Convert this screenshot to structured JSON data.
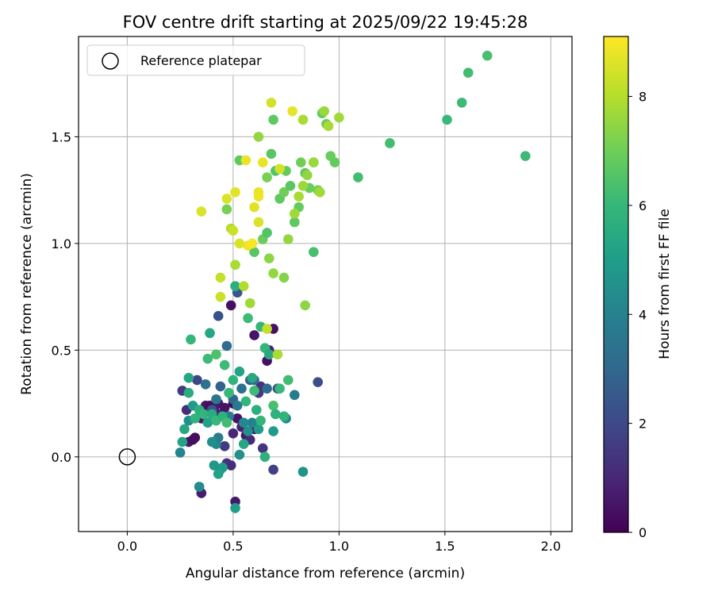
{
  "chart_data": {
    "type": "scatter",
    "title": "FOV centre drift starting at 2025/09/22 19:45:28",
    "xlabel": "Angular distance from reference (arcmin)",
    "ylabel": "Rotation from reference (arcmin)",
    "xlim": [
      -0.23,
      2.1
    ],
    "ylim": [
      -0.35,
      1.97
    ],
    "xticks": [
      0.0,
      0.5,
      1.0,
      1.5,
      2.0
    ],
    "xtick_labels": [
      "0.0",
      "0.5",
      "1.0",
      "1.5",
      "2.0"
    ],
    "yticks": [
      0.0,
      0.5,
      1.0,
      1.5
    ],
    "ytick_labels": [
      "0.0",
      "0.5",
      "1.0",
      "1.5"
    ],
    "grid": true,
    "legend": {
      "position": "top-left",
      "entries": [
        "Reference platepar"
      ]
    },
    "reference_point": {
      "x": 0.0,
      "y": 0.0,
      "label": "Reference platepar"
    },
    "colorbar": {
      "label": "Hours from first FF file",
      "min": 0,
      "max": 9.1,
      "ticks": [
        0,
        2,
        4,
        6,
        8
      ],
      "tick_labels": [
        "0",
        "2",
        "4",
        "6",
        "8"
      ],
      "colormap_stops": [
        "#440154",
        "#482878",
        "#3e4989",
        "#31688e",
        "#26828e",
        "#1f9e89",
        "#35b779",
        "#6ece58",
        "#b5de2b",
        "#fde725"
      ]
    },
    "points": [
      [
        0.26,
        0.31,
        1.6
      ],
      [
        0.28,
        0.22,
        1.2
      ],
      [
        0.29,
        0.07,
        0.6
      ],
      [
        0.31,
        0.08,
        0.4
      ],
      [
        0.32,
        0.09,
        0.3
      ],
      [
        0.35,
        0.18,
        0.6
      ],
      [
        0.36,
        0.2,
        0.8
      ],
      [
        0.37,
        0.24,
        0.5
      ],
      [
        0.39,
        0.24,
        0.3
      ],
      [
        0.41,
        0.22,
        0.4
      ],
      [
        0.43,
        0.25,
        0.6
      ],
      [
        0.44,
        0.2,
        0.9
      ],
      [
        0.46,
        0.23,
        0.5
      ],
      [
        0.48,
        0.19,
        0.7
      ],
      [
        0.5,
        0.25,
        0.2
      ],
      [
        0.52,
        0.18,
        0.5
      ],
      [
        0.54,
        0.14,
        0.8
      ],
      [
        0.56,
        0.1,
        0.6
      ],
      [
        0.58,
        0.08,
        1.1
      ],
      [
        0.6,
        0.13,
        0.5
      ],
      [
        0.62,
        0.3,
        0.6
      ],
      [
        0.63,
        0.33,
        1.3
      ],
      [
        0.64,
        0.04,
        1.4
      ],
      [
        0.66,
        0.45,
        0.4
      ],
      [
        0.67,
        0.5,
        0.9
      ],
      [
        0.69,
        0.6,
        0.4
      ],
      [
        0.6,
        0.57,
        0.5
      ],
      [
        0.49,
        0.71,
        0.4
      ],
      [
        0.5,
        0.11,
        1.0
      ],
      [
        0.46,
        0.05,
        1.6
      ],
      [
        0.47,
        -0.03,
        1.3
      ],
      [
        0.49,
        -0.04,
        1.2
      ],
      [
        0.51,
        -0.21,
        0.6
      ],
      [
        0.35,
        -0.17,
        0.7
      ],
      [
        0.69,
        -0.06,
        1.8
      ],
      [
        0.62,
        0.3,
        1.5
      ],
      [
        0.71,
        0.32,
        2.0
      ],
      [
        0.9,
        0.35,
        2.2
      ],
      [
        0.79,
        0.29,
        3.8
      ],
      [
        0.43,
        0.66,
        2.3
      ],
      [
        0.52,
        0.77,
        2.5
      ],
      [
        0.47,
        0.52,
        3.2
      ],
      [
        0.4,
        0.22,
        2.4
      ],
      [
        0.33,
        0.36,
        1.9
      ],
      [
        0.37,
        0.34,
        3.4
      ],
      [
        0.42,
        0.27,
        3.6
      ],
      [
        0.44,
        0.33,
        2.8
      ],
      [
        0.5,
        0.27,
        3.0
      ],
      [
        0.54,
        0.32,
        3.4
      ],
      [
        0.58,
        0.36,
        2.9
      ],
      [
        0.6,
        0.36,
        3.2
      ],
      [
        0.66,
        0.32,
        3.1
      ],
      [
        0.48,
        0.19,
        4.0
      ],
      [
        0.52,
        0.24,
        3.7
      ],
      [
        0.55,
        0.16,
        4.3
      ],
      [
        0.57,
        0.12,
        4.5
      ],
      [
        0.59,
        0.16,
        4.0
      ],
      [
        0.42,
        0.06,
        4.3
      ],
      [
        0.43,
        0.09,
        3.8
      ],
      [
        0.4,
        0.07,
        4.5
      ],
      [
        0.41,
        -0.04,
        4.8
      ],
      [
        0.44,
        -0.06,
        4.6
      ],
      [
        0.45,
        -0.05,
        5.0
      ],
      [
        0.43,
        -0.08,
        5.2
      ],
      [
        0.34,
        -0.14,
        4.4
      ],
      [
        0.51,
        -0.24,
        5.1
      ],
      [
        0.53,
        0.01,
        4.6
      ],
      [
        0.55,
        0.06,
        5.4
      ],
      [
        0.62,
        0.13,
        4.9
      ],
      [
        0.65,
        -0.0,
        5.8
      ],
      [
        0.69,
        0.12,
        4.9
      ],
      [
        0.75,
        0.18,
        4.2
      ],
      [
        0.83,
        -0.07,
        4.7
      ],
      [
        0.25,
        0.02,
        4.1
      ],
      [
        0.26,
        0.07,
        5.3
      ],
      [
        0.27,
        0.13,
        5.4
      ],
      [
        0.29,
        0.17,
        4.5
      ],
      [
        0.31,
        0.24,
        5.0
      ],
      [
        0.29,
        0.3,
        5.6
      ],
      [
        0.29,
        0.37,
        5.4
      ],
      [
        0.32,
        0.18,
        5.9
      ],
      [
        0.34,
        0.22,
        5.7
      ],
      [
        0.36,
        0.2,
        6.0
      ],
      [
        0.38,
        0.16,
        5.2
      ],
      [
        0.4,
        0.2,
        5.6
      ],
      [
        0.42,
        0.17,
        6.1
      ],
      [
        0.45,
        0.19,
        5.8
      ],
      [
        0.47,
        0.16,
        6.3
      ],
      [
        0.48,
        0.3,
        6.1
      ],
      [
        0.5,
        0.36,
        5.9
      ],
      [
        0.53,
        0.4,
        5.3
      ],
      [
        0.56,
        0.26,
        6.0
      ],
      [
        0.59,
        0.37,
        5.5
      ],
      [
        0.6,
        0.31,
        6.2
      ],
      [
        0.61,
        0.22,
        5.7
      ],
      [
        0.63,
        0.17,
        6.0
      ],
      [
        0.65,
        0.51,
        6.0
      ],
      [
        0.67,
        0.48,
        5.5
      ],
      [
        0.69,
        0.24,
        6.4
      ],
      [
        0.7,
        0.2,
        5.8
      ],
      [
        0.72,
        0.32,
        6.1
      ],
      [
        0.74,
        0.19,
        5.9
      ],
      [
        0.76,
        0.36,
        6.3
      ],
      [
        0.3,
        0.55,
        6.0
      ],
      [
        0.38,
        0.46,
        6.2
      ],
      [
        0.39,
        0.58,
        5.4
      ],
      [
        0.42,
        0.48,
        6.5
      ],
      [
        0.46,
        0.43,
        6.2
      ],
      [
        0.51,
        0.8,
        5.7
      ],
      [
        0.57,
        0.65,
        6.2
      ],
      [
        0.63,
        0.61,
        6.0
      ],
      [
        0.88,
        0.96,
        6.4
      ],
      [
        1.09,
        1.31,
        6.3
      ],
      [
        1.24,
        1.47,
        6.3
      ],
      [
        1.51,
        1.58,
        6.1
      ],
      [
        1.58,
        1.66,
        6.2
      ],
      [
        1.61,
        1.8,
        6.3
      ],
      [
        1.7,
        1.88,
        6.4
      ],
      [
        1.88,
        1.41,
        6.2
      ],
      [
        0.53,
        1.39,
        6.8
      ],
      [
        0.6,
        0.96,
        6.7
      ],
      [
        0.64,
        1.02,
        7.0
      ],
      [
        0.66,
        1.05,
        6.6
      ],
      [
        0.68,
        1.42,
        6.7
      ],
      [
        0.69,
        1.58,
        6.8
      ],
      [
        0.7,
        1.34,
        6.6
      ],
      [
        0.72,
        1.21,
        6.8
      ],
      [
        0.74,
        1.24,
        7.1
      ],
      [
        0.75,
        1.34,
        6.9
      ],
      [
        0.77,
        1.27,
        6.7
      ],
      [
        0.79,
        1.1,
        6.8
      ],
      [
        0.81,
        1.17,
        6.9
      ],
      [
        0.82,
        1.38,
        7.1
      ],
      [
        0.84,
        1.33,
        6.8
      ],
      [
        0.86,
        1.26,
        7.0
      ],
      [
        0.88,
        1.38,
        7.0
      ],
      [
        0.9,
        1.25,
        7.2
      ],
      [
        0.92,
        1.61,
        6.9
      ],
      [
        0.94,
        1.56,
        7.0
      ],
      [
        0.96,
        1.41,
        7.0
      ],
      [
        0.98,
        1.38,
        6.9
      ],
      [
        0.47,
        1.16,
        7.2
      ],
      [
        0.66,
        1.31,
        7.2
      ],
      [
        0.67,
        0.93,
        7.5
      ],
      [
        0.69,
        0.86,
        7.6
      ],
      [
        0.74,
        0.84,
        7.4
      ],
      [
        0.76,
        1.02,
        7.6
      ],
      [
        0.79,
        1.14,
        7.8
      ],
      [
        0.81,
        1.22,
        7.9
      ],
      [
        0.83,
        1.27,
        7.7
      ],
      [
        0.84,
        0.71,
        7.5
      ],
      [
        0.85,
        1.32,
        7.6
      ],
      [
        0.88,
        1.38,
        7.7
      ],
      [
        0.91,
        1.24,
        7.8
      ],
      [
        0.93,
        1.62,
        7.7
      ],
      [
        0.95,
        1.55,
        7.9
      ],
      [
        1.0,
        1.59,
        7.8
      ],
      [
        0.83,
        1.58,
        7.9
      ],
      [
        0.62,
        1.5,
        7.6
      ],
      [
        0.58,
        0.72,
        7.8
      ],
      [
        0.55,
        0.8,
        8.0
      ],
      [
        0.51,
        0.9,
        7.9
      ],
      [
        0.49,
        1.07,
        8.0
      ],
      [
        0.44,
        0.84,
        8.3
      ],
      [
        0.44,
        0.75,
        8.4
      ],
      [
        0.47,
        1.21,
        8.6
      ],
      [
        0.51,
        1.24,
        8.7
      ],
      [
        0.56,
        1.39,
        8.8
      ],
      [
        0.6,
        1.17,
        8.7
      ],
      [
        0.62,
        1.1,
        8.6
      ],
      [
        0.62,
        1.24,
        8.8
      ],
      [
        0.62,
        1.22,
        8.9
      ],
      [
        0.64,
        1.38,
        8.8
      ],
      [
        0.57,
        0.99,
        8.9
      ],
      [
        0.59,
        1.0,
        9.0
      ],
      [
        0.35,
        1.15,
        8.6
      ],
      [
        0.53,
        1.0,
        8.6
      ],
      [
        0.68,
        1.66,
        8.5
      ],
      [
        0.72,
        1.35,
        8.5
      ],
      [
        0.78,
        1.62,
        8.8
      ],
      [
        0.71,
        0.48,
        7.9
      ],
      [
        0.66,
        0.6,
        8.3
      ],
      [
        0.5,
        1.06,
        8.4
      ]
    ]
  }
}
